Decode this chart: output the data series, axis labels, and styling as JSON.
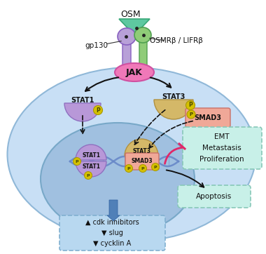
{
  "bg_color": "#ffffff",
  "osm_label": "OSM",
  "gp130_label": "gp130",
  "osmr_label": "OSMRβ / LIFRβ",
  "jak_label": "JAK",
  "stat1_label": "STAT1",
  "stat3_label": "STAT3",
  "smad3_label": "SMAD3",
  "emt_text": "EMT\nMetastasis\nProliferation",
  "apoptosis_text": "Apoptosis",
  "downstream_text": "▲ cdk inhibitors\n▼ slug\n▼ cycklin A",
  "colors": {
    "osm_body": "#5ec8a0",
    "gp130": "#b8a0d8",
    "osmr": "#8fcc78",
    "jak": "#f078b8",
    "stat1": "#b898d8",
    "stat3": "#d4b868",
    "smad3": "#f0a898",
    "dna": "#6888c8",
    "phospho": "#d4c000",
    "phospho_ec": "#a89800",
    "emt_box_bg": "#c8f0e8",
    "emt_box_ec": "#88c8b8",
    "apop_box_bg": "#c8f0e8",
    "apop_box_ec": "#88c8b8",
    "downstream_box_bg": "#b8d8f0",
    "downstream_box_ec": "#80b0d0",
    "blue_arrow": "#5080b8",
    "outer_cell": "#c8dff5",
    "outer_cell_ec": "#90b8d8",
    "inner_nucleus": "#a0c0e0",
    "inner_nucleus_ec": "#78a8c8",
    "pink_arrow": "#e02868"
  }
}
